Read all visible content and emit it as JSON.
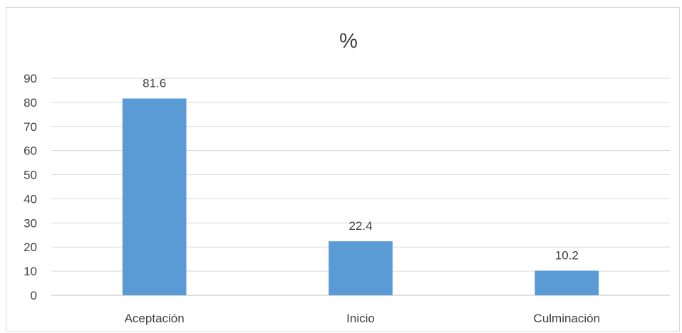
{
  "chart_data": {
    "type": "bar",
    "title": "%",
    "categories": [
      "Aceptación",
      "Inicio",
      "Culminación"
    ],
    "values": [
      81.6,
      22.4,
      10.2
    ],
    "data_labels": [
      "81.6",
      "22.4",
      "10.2"
    ],
    "yticks": [
      "0",
      "10",
      "20",
      "30",
      "40",
      "50",
      "60",
      "70",
      "80",
      "90"
    ],
    "ylim": [
      0,
      90
    ],
    "grid": true,
    "legend": "none",
    "bar_color": "#5b9bd5"
  }
}
